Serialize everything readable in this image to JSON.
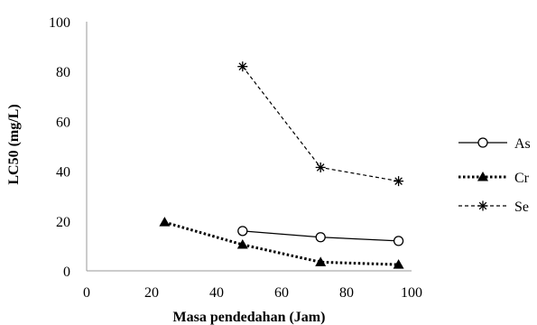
{
  "chart_data": {
    "type": "line",
    "title": "",
    "xlabel": "Masa pendedahan  (Jam)",
    "ylabel": "LC50 (mg/L)",
    "xlim": [
      0,
      100
    ],
    "ylim": [
      0,
      100
    ],
    "xticks": [
      0,
      20,
      40,
      60,
      80,
      100
    ],
    "yticks": [
      0,
      20,
      40,
      60,
      80,
      100
    ],
    "grid": false,
    "legend_position": "right",
    "series": [
      {
        "name": "As",
        "x": [
          48,
          72,
          96
        ],
        "y": [
          16,
          13.5,
          12
        ],
        "color": "#000000",
        "line_style": "solid",
        "marker": "open-circle"
      },
      {
        "name": "Cr",
        "x": [
          24,
          48,
          72,
          96
        ],
        "y": [
          19.5,
          10.5,
          3.5,
          2.5
        ],
        "color": "#000000",
        "line_style": "dotted",
        "marker": "filled-triangle"
      },
      {
        "name": "Se",
        "x": [
          48,
          72,
          96
        ],
        "y": [
          82,
          41.5,
          36
        ],
        "color": "#000000",
        "line_style": "dashed",
        "marker": "asterisk"
      }
    ]
  }
}
